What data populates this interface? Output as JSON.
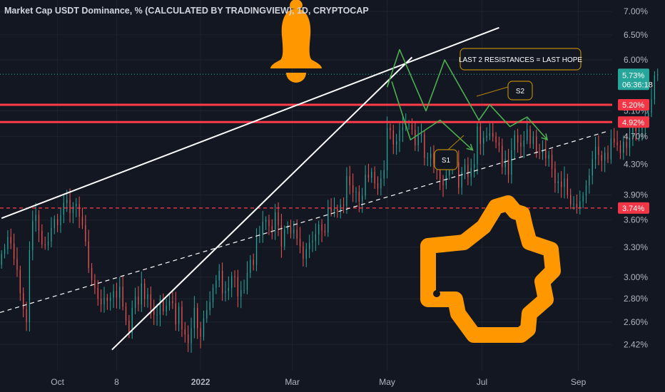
{
  "header": {
    "title": "Market Cap USDT Dominance, % (CALCULATED BY TRADINGVIEW), 1D, CRYPTOCAP"
  },
  "colors": {
    "background": "#131722",
    "up_candle": "#26a69a",
    "down_candle": "#ef5350",
    "resistance": "#ff3b4a",
    "forecast": "#4caf50",
    "trendline": "#ffffff",
    "icon": "#ff9800",
    "current_price_tag": "#26a69a",
    "callout_border": "#b8860b"
  },
  "icons": [
    "bell-icon",
    "thumbs-up-icon"
  ],
  "chart_data": {
    "type": "candlestick",
    "title": "Market Cap USDT Dominance, % (CALCULATED BY TRADINGVIEW), 1D, CRYPTOCAP",
    "y_scale": "log",
    "y_unit": "%",
    "ylim": [
      2.33,
      7.1
    ],
    "y_ticks": [
      "7.00%",
      "6.50%",
      "6.00%",
      "5.10%",
      "4.70%",
      "4.30%",
      "3.90%",
      "3.60%",
      "3.30%",
      "3.00%",
      "2.80%",
      "2.60%",
      "2.42%"
    ],
    "x_ticks": [
      "Oct",
      "8",
      "2022",
      "Mar",
      "May",
      "Jul",
      "Sep"
    ],
    "x_range": [
      "2021-08-25",
      "2022-09-20"
    ],
    "price_tags": [
      {
        "label": "5.73%",
        "value": 5.73,
        "kind": "current",
        "countdown": "06:36:18"
      },
      {
        "label": "5.20%",
        "value": 5.2,
        "kind": "resistance"
      },
      {
        "label": "4.92%",
        "value": 4.92,
        "kind": "resistance"
      },
      {
        "label": "3.74%",
        "value": 3.74,
        "kind": "support"
      }
    ],
    "annotations": [
      {
        "text": "LAST 2 RESISTANCES = LAST HOPE",
        "kind": "callout"
      },
      {
        "text": "S2",
        "kind": "scenario"
      },
      {
        "text": "S1",
        "kind": "scenario"
      }
    ],
    "horizontal_lines": [
      {
        "value": 5.2,
        "style": "solid",
        "color": "#ff3b4a"
      },
      {
        "value": 4.92,
        "style": "solid",
        "color": "#ff3b4a"
      },
      {
        "value": 3.74,
        "style": "dashed",
        "color": "#ff3b4a"
      },
      {
        "value": 5.73,
        "style": "dotted",
        "color": "#26a69a"
      }
    ],
    "trendlines": [
      {
        "style": "solid",
        "from": [
          "2021-08-26",
          3.62
        ],
        "to": [
          "2022-07-12",
          6.65
        ]
      },
      {
        "style": "solid",
        "from": [
          "2021-11-05",
          2.38
        ],
        "to": [
          "2022-05-17",
          6.05
        ]
      },
      {
        "style": "dashed",
        "from": [
          "2021-08-25",
          2.68
        ],
        "to": [
          "2022-09-20",
          4.78
        ]
      }
    ],
    "forecast_paths": [
      {
        "name": "S2",
        "points": [
          [
            "2022-05-01",
            5.5
          ],
          [
            "2022-05-09",
            6.2
          ],
          [
            "2022-05-26",
            5.1
          ],
          [
            "2022-06-07",
            6.0
          ],
          [
            "2022-06-29",
            4.95
          ],
          [
            "2022-07-06",
            5.2
          ],
          [
            "2022-07-19",
            4.85
          ],
          [
            "2022-07-30",
            5.0
          ],
          [
            "2022-08-12",
            4.65
          ]
        ]
      },
      {
        "name": "S1",
        "points": [
          [
            "2022-05-04",
            5.6
          ],
          [
            "2022-05-16",
            4.65
          ],
          [
            "2022-06-04",
            4.95
          ],
          [
            "2022-06-25",
            4.5
          ]
        ]
      }
    ],
    "candles": {
      "start_date": "2021-08-25",
      "open_first": 3.12,
      "closes": [
        3.23,
        3.28,
        3.41,
        3.34,
        3.18,
        3.07,
        2.85,
        2.71,
        2.6,
        3.27,
        3.59,
        3.66,
        3.48,
        3.33,
        3.32,
        3.36,
        3.51,
        3.61,
        3.54,
        3.66,
        3.8,
        3.84,
        3.68,
        3.76,
        3.79,
        3.64,
        3.54,
        3.36,
        3.09,
        2.97,
        2.9,
        2.8,
        2.75,
        2.81,
        2.78,
        2.81,
        2.87,
        2.81,
        2.91,
        2.73,
        2.61,
        2.51,
        2.72,
        2.82,
        2.75,
        2.94,
        2.8,
        2.84,
        2.71,
        2.66,
        2.66,
        2.8,
        2.69,
        2.74,
        2.78,
        2.76,
        2.58,
        2.73,
        2.54,
        2.5,
        2.43,
        2.55,
        2.72,
        2.55,
        2.48,
        2.63,
        2.7,
        2.77,
        2.9,
        2.97,
        3.06,
        2.85,
        2.87,
        2.9,
        3.01,
        3.0,
        2.82,
        2.88,
        2.88,
        3.04,
        3.17,
        3.12,
        3.42,
        3.43,
        3.58,
        3.6,
        3.53,
        3.49,
        3.69,
        3.54,
        3.31,
        3.49,
        3.52,
        3.45,
        3.49,
        3.39,
        3.31,
        3.18,
        3.28,
        3.35,
        3.37,
        3.44,
        3.55,
        3.48,
        3.46,
        3.74,
        3.7,
        3.73,
        3.7,
        3.78,
        3.77,
        4.14,
        4.02,
        3.93,
        3.94,
        3.82,
        3.89,
        4.16,
        4.12,
        4.2,
        4.05,
        3.98,
        4.11,
        4.22,
        4.83,
        4.79,
        4.58,
        4.63,
        4.79,
        4.84,
        4.87,
        4.88,
        4.8,
        4.57,
        4.71,
        4.73,
        4.39,
        4.39,
        4.45,
        4.31,
        4.23,
        4.1,
        4.02,
        4.15,
        4.23,
        4.34,
        4.33,
        3.99,
        4.2,
        4.29,
        4.13,
        4.25,
        4.3,
        4.85,
        4.59,
        4.68,
        4.71,
        4.75,
        4.7,
        4.61,
        4.56,
        4.26,
        4.37,
        4.16,
        4.5,
        4.72,
        4.61,
        4.55,
        4.64,
        4.81,
        4.59,
        4.7,
        4.47,
        4.46,
        4.5,
        4.38,
        4.43,
        4.24,
        4.05,
        4.07,
        4.0,
        4.11,
        3.9,
        3.78,
        3.79,
        3.74,
        3.82,
        3.89,
        4.02,
        4.15,
        4.37,
        4.55,
        4.43,
        4.35,
        4.46,
        4.37,
        4.67,
        4.61,
        4.57,
        4.46,
        4.62,
        4.53,
        4.69,
        4.84,
        4.78,
        4.8,
        4.85,
        4.93,
        5.07,
        5.29,
        5.71,
        5.73
      ]
    }
  }
}
